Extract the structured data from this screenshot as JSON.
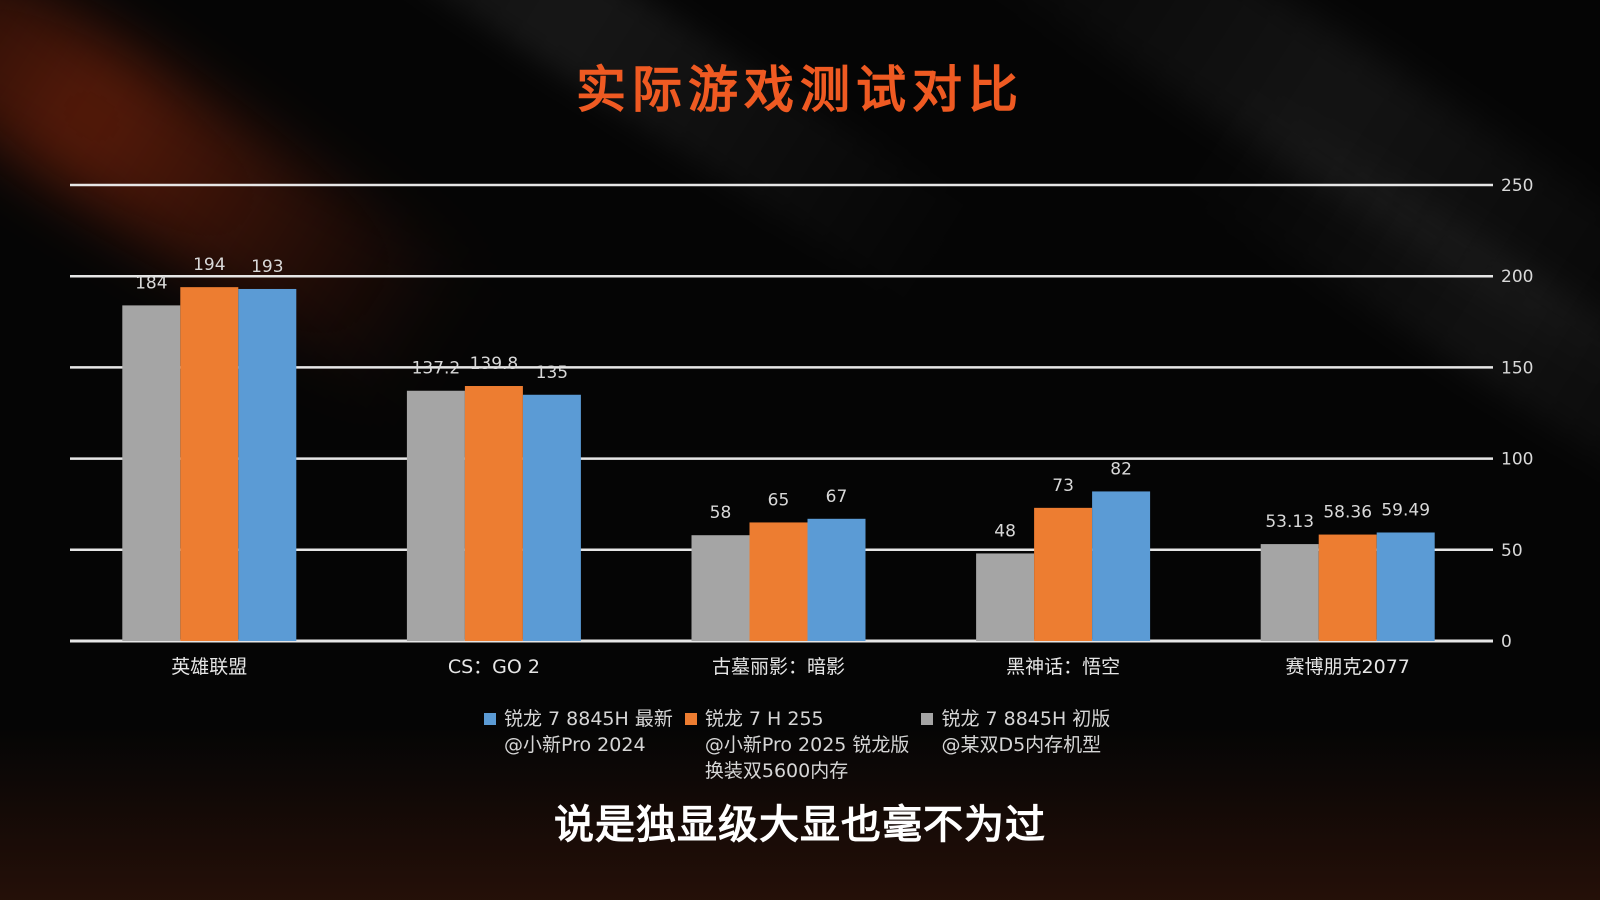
{
  "title": "实际游戏测试对比",
  "caption": "说是独显级大显也毫不为过",
  "colors": {
    "title": "#ef5a22",
    "gray": "#a5a5a5",
    "orange": "#ed7d31",
    "blue": "#5b9bd5"
  },
  "legend": [
    {
      "color": "#5b9bd5",
      "lines": [
        "锐龙 7 8845H 最新",
        "@小新Pro 2024"
      ]
    },
    {
      "color": "#ed7d31",
      "lines": [
        "锐龙 7 H 255",
        "@小新Pro 2025 锐龙版",
        "换装双5600内存"
      ]
    },
    {
      "color": "#a5a5a5",
      "lines": [
        "锐龙 7 8845H 初版",
        "@某双D5内存机型"
      ]
    }
  ],
  "chart_data": {
    "type": "bar",
    "categories": [
      "英雄联盟",
      "CS：GO 2",
      "古墓丽影：暗影",
      "黑神话：悟空",
      "赛博朋克2077"
    ],
    "series": [
      {
        "name": "锐龙 7 8845H 初版 @某双D5内存机型",
        "color": "#a5a5a5",
        "values": [
          184,
          137.2,
          58,
          48,
          53.13
        ],
        "labels": [
          "184",
          "137.2",
          "58",
          "48",
          "53.13"
        ]
      },
      {
        "name": "锐龙 7 H 255 @小新Pro 2025 锐龙版 换装双5600内存",
        "color": "#ed7d31",
        "values": [
          194,
          139.8,
          65,
          73,
          58.36
        ],
        "labels": [
          "194",
          "139.8",
          "65",
          "73",
          "58.36"
        ]
      },
      {
        "name": "锐龙 7 8845H 最新 @小新Pro 2024",
        "color": "#5b9bd5",
        "values": [
          193,
          135,
          67,
          82,
          59.49
        ],
        "labels": [
          "193",
          "135",
          "67",
          "82",
          "59.49"
        ]
      }
    ],
    "ylim": [
      0,
      250
    ],
    "yticks": [
      "0",
      "50",
      "100",
      "150",
      "200",
      "250"
    ],
    "y_axis_side": "right",
    "grid": true,
    "legend_position": "bottom"
  }
}
